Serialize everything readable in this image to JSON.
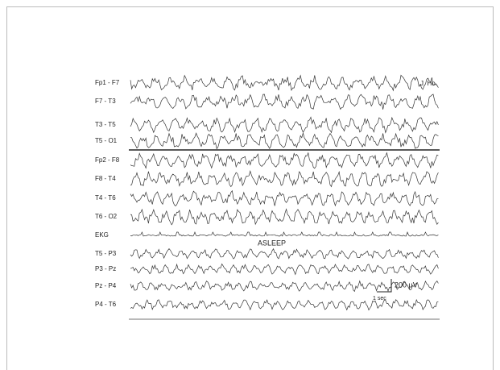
{
  "figure": {
    "annotation": "J. Ho.",
    "state_label": "ASLEEP",
    "scale_amplitude": "200 μV",
    "scale_time": "1 sec",
    "channels": [
      "Fp1 - F7",
      "F7 - T3",
      "T3 - T5",
      "T5 - O1",
      "Fp2 - F8",
      "F8 - T4",
      "T4 - T6",
      "T6 - O2",
      "EKG",
      "T5 - P3",
      "P3 - Pz",
      "Pz - P4",
      "P4 - T6"
    ]
  }
}
